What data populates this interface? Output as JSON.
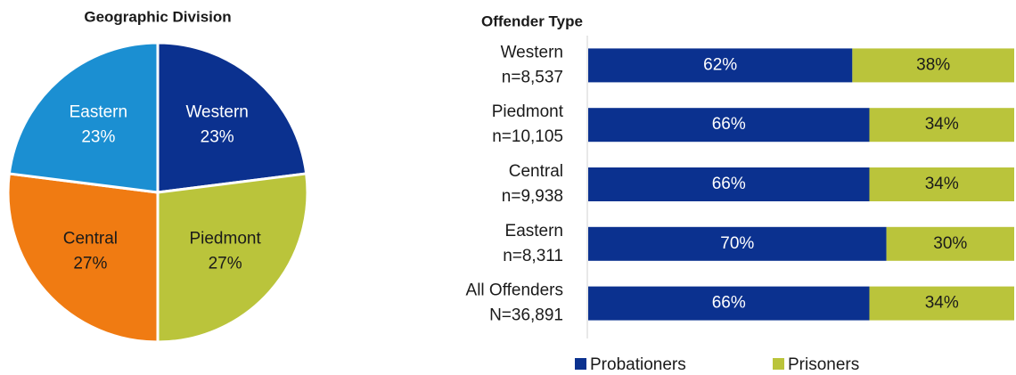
{
  "chart_data": [
    {
      "type": "pie",
      "title": "Geographic Division",
      "categories": [
        "Western",
        "Piedmont",
        "Central",
        "Eastern"
      ],
      "values": [
        23,
        27,
        27,
        23
      ],
      "value_labels": [
        "23%",
        "27%",
        "27%",
        "23%"
      ],
      "colors": [
        "#0b318f",
        "#bac43b",
        "#f07b12",
        "#1b8fd2"
      ],
      "label_colors": [
        "#ffffff",
        "#1a1a1a",
        "#1a1a1a",
        "#ffffff"
      ]
    },
    {
      "type": "stacked_bar_horizontal",
      "title": "Offender Type",
      "categories": [
        [
          "Western",
          "n=8,537"
        ],
        [
          "Piedmont",
          "n=10,105"
        ],
        [
          "Central",
          "n=9,938"
        ],
        [
          "Eastern",
          "n=8,311"
        ],
        [
          "All Offenders",
          "N=36,891"
        ]
      ],
      "series": [
        {
          "name": "Probationers",
          "color": "#0b318f",
          "label_color": "#ffffff",
          "values": [
            62,
            66,
            66,
            70,
            66
          ],
          "value_labels": [
            "62%",
            "66%",
            "66%",
            "70%",
            "66%"
          ]
        },
        {
          "name": "Prisoners",
          "color": "#bac43b",
          "label_color": "#1a1a1a",
          "values": [
            38,
            34,
            34,
            30,
            34
          ],
          "value_labels": [
            "38%",
            "34%",
            "34%",
            "30%",
            "34%"
          ]
        }
      ],
      "xlim": [
        0,
        100
      ],
      "legend": "bottom"
    }
  ]
}
